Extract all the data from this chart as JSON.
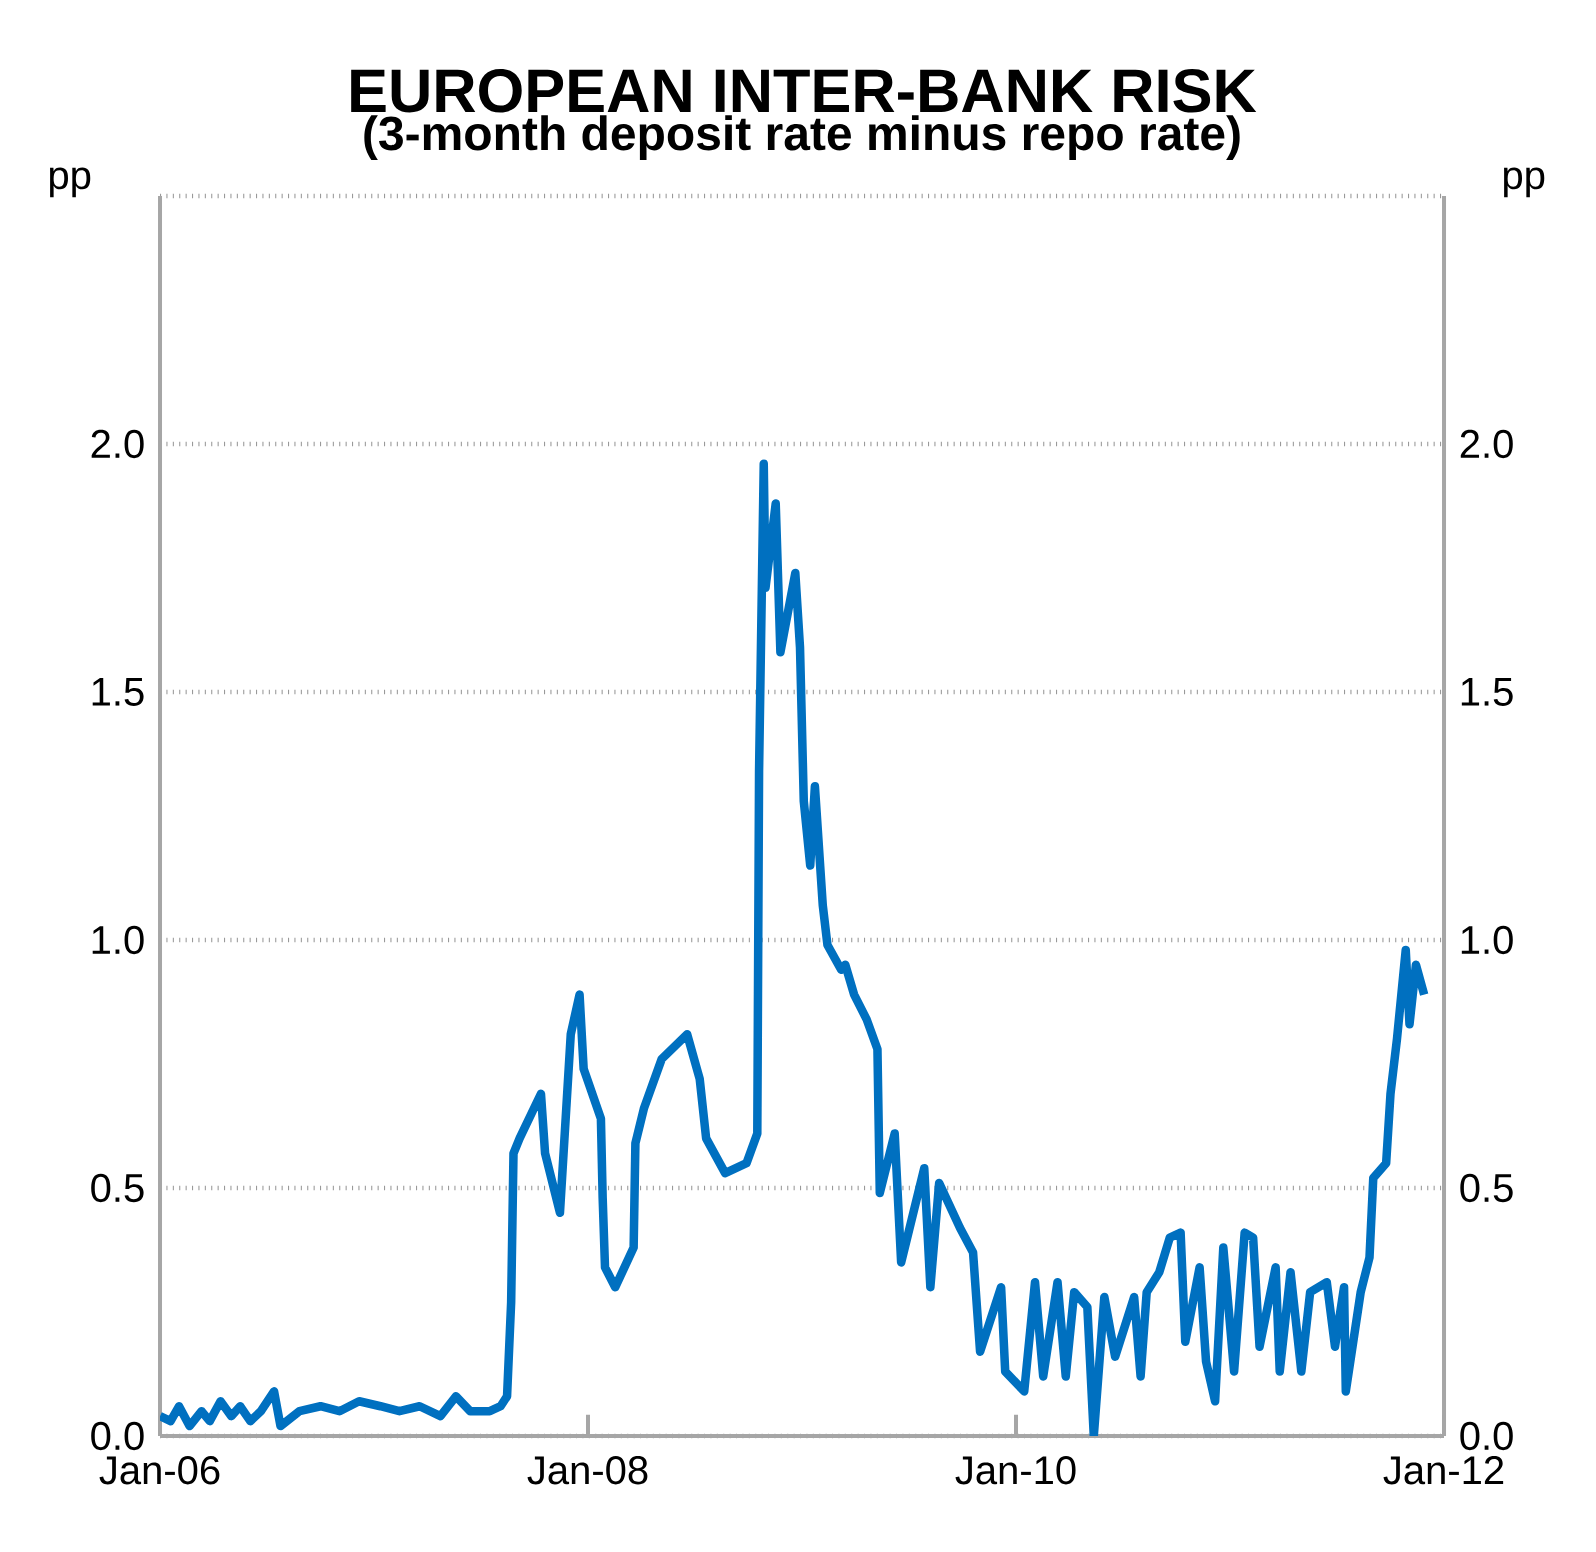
{
  "chart_data": {
    "type": "line",
    "title": "EUROPEAN INTER-BANK  RISK",
    "subtitle": "(3-month deposit rate minus repo rate)",
    "ylabel": "pp",
    "y2label": "pp",
    "xlim": [
      "2006-01",
      "2012-01"
    ],
    "xticks": [
      {
        "value": "2006-01",
        "label": "Jan-06"
      },
      {
        "value": "2008-01",
        "label": "Jan-08"
      },
      {
        "value": "2010-01",
        "label": "Jan-10"
      },
      {
        "value": "2012-01",
        "label": "Jan-12"
      }
    ],
    "ylim": [
      0,
      2.5
    ],
    "yticks": [
      {
        "value": 0,
        "label": "0.0"
      },
      {
        "value": 0.5,
        "label": "0.5"
      },
      {
        "value": 1,
        "label": "1.0"
      },
      {
        "value": 1.5,
        "label": "1.5"
      },
      {
        "value": 2,
        "label": "2.0"
      },
      {
        "value": 2.5,
        "label": null
      }
    ],
    "y2lim": [
      0,
      2.5
    ],
    "y2ticks": [
      {
        "value": 0,
        "label": "0.0"
      },
      {
        "value": 0.5,
        "label": "0.5"
      },
      {
        "value": 1,
        "label": "1.0"
      },
      {
        "value": 1.5,
        "label": "1.5"
      },
      {
        "value": 2,
        "label": "2.0"
      },
      {
        "value": 2.5,
        "label": null
      }
    ],
    "grid": "y",
    "marker": "none",
    "line_style": "solid",
    "series": [
      {
        "color": "#0070c0",
        "x": [
          "2006-01-01",
          "2006-01-19",
          "2006-02-03",
          "2006-02-21",
          "2006-03-11",
          "2006-03-25",
          "2006-04-13",
          "2006-05-01",
          "2006-05-16",
          "2006-06-03",
          "2006-06-21",
          "2006-07-13",
          "2006-07-24",
          "2006-08-26",
          "2006-10-01",
          "2006-11-03",
          "2006-12-06",
          "2007-01-12",
          "2007-02-14",
          "2007-03-18",
          "2007-04-23",
          "2007-05-19",
          "2007-06-13",
          "2007-07-16",
          "2007-08-04",
          "2007-08-15",
          "2007-08-22",
          "2007-08-26",
          "2007-09-06",
          "2007-10-12",
          "2007-10-19",
          "2007-11-14",
          "2007-12-02",
          "2007-12-17",
          "2007-12-24",
          "2008-01-23",
          "2008-01-26",
          "2008-01-30",
          "2008-02-17",
          "2008-03-18",
          "2008-03-21",
          "2008-04-05",
          "2008-05-05",
          "2008-06-18",
          "2008-07-09",
          "2008-07-20",
          "2008-08-22",
          "2008-09-28",
          "2008-10-16",
          "2008-10-19",
          "2008-10-27",
          "2008-10-30",
          "2008-11-17",
          "2008-11-25",
          "2008-12-20",
          "2008-12-28",
          "2009-01-04",
          "2009-01-15",
          "2009-01-23",
          "2009-02-06",
          "2009-02-14",
          "2009-03-07",
          "2009-03-14",
          "2009-03-29",
          "2009-04-20",
          "2009-05-08",
          "2009-05-12",
          "2009-06-07",
          "2009-06-18",
          "2009-07-27",
          "2009-08-07",
          "2009-08-22",
          "2009-09-27",
          "2009-10-19",
          "2009-10-31",
          "2009-12-06",
          "2009-12-13",
          "2010-01-15",
          "2010-02-03",
          "2010-02-17",
          "2010-03-11",
          "2010-03-25",
          "2010-04-09",
          "2010-05-01",
          "2010-05-12",
          "2010-05-30",
          "2010-06-18",
          "2010-07-20",
          "2010-07-31",
          "2010-08-11",
          "2010-09-02",
          "2010-09-20",
          "2010-10-08",
          "2010-10-16",
          "2010-11-10",
          "2010-11-21",
          "2010-12-06",
          "2010-12-20",
          "2011-01-08",
          "2011-01-26",
          "2011-02-10",
          "2011-02-21",
          "2011-03-18",
          "2011-03-25",
          "2011-04-13",
          "2011-05-01",
          "2011-05-16",
          "2011-06-14",
          "2011-06-28",
          "2011-07-13",
          "2011-07-16",
          "2011-08-11",
          "2011-08-26",
          "2011-09-02",
          "2011-09-24",
          "2011-10-01",
          "2011-10-12",
          "2011-10-27",
          "2011-11-03",
          "2011-11-14",
          "2011-11-28"
        ],
        "values": [
          0.04,
          0.03,
          0.06,
          0.02,
          0.05,
          0.03,
          0.07,
          0.04,
          0.06,
          0.03,
          0.05,
          0.09,
          0.02,
          0.05,
          0.06,
          0.05,
          0.07,
          0.06,
          0.05,
          0.06,
          0.04,
          0.08,
          0.05,
          0.05,
          0.06,
          0.08,
          0.27,
          0.57,
          0.6,
          0.69,
          0.57,
          0.45,
          0.81,
          0.89,
          0.74,
          0.64,
          0.48,
          0.34,
          0.3,
          0.38,
          0.59,
          0.66,
          0.76,
          0.81,
          0.72,
          0.6,
          0.53,
          0.55,
          0.61,
          1.34,
          1.96,
          1.71,
          1.88,
          1.58,
          1.74,
          1.59,
          1.28,
          1.15,
          1.31,
          1.07,
          0.99,
          0.94,
          0.95,
          0.89,
          0.84,
          0.78,
          0.49,
          0.61,
          0.35,
          0.54,
          0.3,
          0.51,
          0.42,
          0.37,
          0.17,
          0.3,
          0.13,
          0.09,
          0.31,
          0.12,
          0.31,
          0.12,
          0.29,
          0.26,
          0.0,
          0.28,
          0.16,
          0.28,
          0.12,
          0.29,
          0.33,
          0.4,
          0.41,
          0.19,
          0.34,
          0.15,
          0.07,
          0.38,
          0.13,
          0.41,
          0.4,
          0.18,
          0.34,
          0.13,
          0.33,
          0.13,
          0.29,
          0.31,
          0.18,
          0.3,
          0.09,
          0.29,
          0.36,
          0.52,
          0.55,
          0.69,
          0.8,
          0.98,
          0.83,
          0.95,
          0.89
        ]
      }
    ]
  }
}
